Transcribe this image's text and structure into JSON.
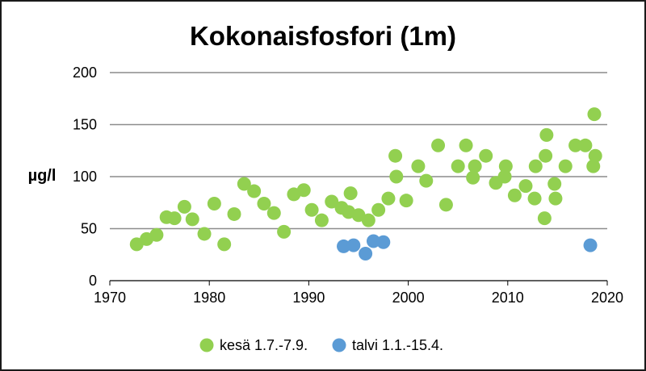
{
  "chart_data": {
    "type": "scatter",
    "title": "Kokonaisfosfori (1m)",
    "ylabel": "µg/l",
    "xlabel": "",
    "xlim": [
      1970,
      2020
    ],
    "ylim": [
      0,
      200
    ],
    "xticks": [
      "1970",
      "1980",
      "1990",
      "2000",
      "2010",
      "2020"
    ],
    "yticks": [
      "0",
      "50",
      "100",
      "150",
      "200"
    ],
    "grid": "horizontal",
    "legend_position": "bottom",
    "series": [
      {
        "name": "kesä 1.7.-7.9.",
        "color": "#92d050",
        "points": [
          [
            1972.7,
            35
          ],
          [
            1973.7,
            40
          ],
          [
            1974.7,
            44
          ],
          [
            1975.7,
            61
          ],
          [
            1976.5,
            60
          ],
          [
            1977.5,
            71
          ],
          [
            1978.3,
            59
          ],
          [
            1979.5,
            45
          ],
          [
            1980.5,
            74
          ],
          [
            1981.5,
            35
          ],
          [
            1982.5,
            64
          ],
          [
            1983.5,
            93
          ],
          [
            1984.5,
            86
          ],
          [
            1985.5,
            74
          ],
          [
            1986.5,
            65
          ],
          [
            1987.5,
            47
          ],
          [
            1988.5,
            83
          ],
          [
            1989.5,
            87
          ],
          [
            1990.3,
            68
          ],
          [
            1991.3,
            58
          ],
          [
            1992.3,
            76
          ],
          [
            1993.3,
            70
          ],
          [
            1994,
            66
          ],
          [
            1994.2,
            84
          ],
          [
            1995,
            63
          ],
          [
            1996,
            58
          ],
          [
            1997,
            68
          ],
          [
            1998,
            79
          ],
          [
            1998.7,
            120
          ],
          [
            1998.8,
            100
          ],
          [
            1999.8,
            77
          ],
          [
            2001,
            110
          ],
          [
            2001.8,
            96
          ],
          [
            2003,
            130
          ],
          [
            2003.8,
            73
          ],
          [
            2005,
            110
          ],
          [
            2005.8,
            130
          ],
          [
            2006.5,
            99
          ],
          [
            2006.7,
            110
          ],
          [
            2007.8,
            120
          ],
          [
            2008.8,
            94
          ],
          [
            2009.7,
            100
          ],
          [
            2009.8,
            110
          ],
          [
            2010.7,
            82
          ],
          [
            2011.8,
            91
          ],
          [
            2012.7,
            79
          ],
          [
            2012.8,
            110
          ],
          [
            2013.7,
            60
          ],
          [
            2013.8,
            120
          ],
          [
            2013.9,
            140
          ],
          [
            2014.7,
            93
          ],
          [
            2014.8,
            79
          ],
          [
            2015.8,
            110
          ],
          [
            2016.8,
            130
          ],
          [
            2017.8,
            130
          ],
          [
            2018.6,
            110
          ],
          [
            2018.7,
            160
          ],
          [
            2018.8,
            120
          ]
        ]
      },
      {
        "name": "talvi 1.1.-15.4.",
        "color": "#5b9bd5",
        "points": [
          [
            1993.5,
            33
          ],
          [
            1994.5,
            34
          ],
          [
            1995.7,
            26
          ],
          [
            1996.5,
            38
          ],
          [
            1997.5,
            37
          ],
          [
            2018.3,
            34
          ]
        ]
      }
    ]
  }
}
